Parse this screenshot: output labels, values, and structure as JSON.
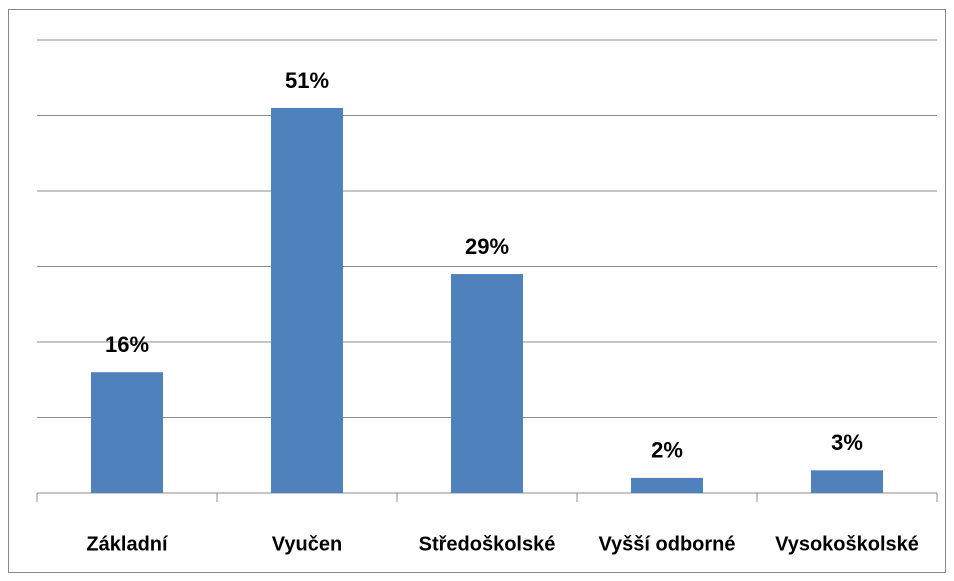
{
  "chart_data": {
    "type": "bar",
    "categories": [
      "Základní",
      "Vyučen",
      "Středoškolské",
      "Vyšší odborné",
      "Vysokoškolské"
    ],
    "values": [
      16,
      51,
      29,
      2,
      3
    ],
    "value_labels": [
      "16%",
      "51%",
      "29%",
      "2%",
      "3%"
    ],
    "color": "#4f81bd",
    "ylim": [
      0,
      60
    ],
    "yticks": [
      0,
      10,
      20,
      30,
      40,
      50,
      60
    ],
    "grid": true
  }
}
